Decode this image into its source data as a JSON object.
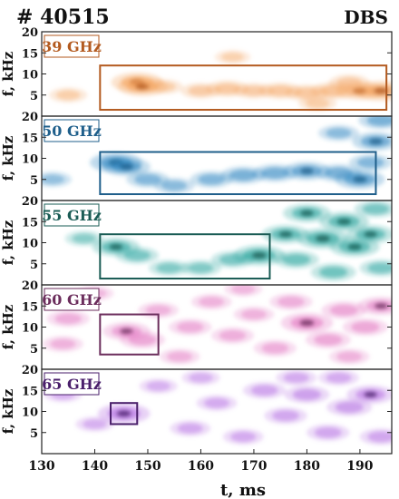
{
  "header": {
    "shot_label": "# 40515",
    "diagnostic_label": "DBS"
  },
  "chart_data": {
    "type": "heatmap",
    "title": "",
    "xlabel": "t, ms",
    "ylabel": "f, kHz",
    "xlim": [
      130,
      196
    ],
    "ylim": [
      0,
      20
    ],
    "xticks": [
      130,
      140,
      150,
      160,
      170,
      180,
      190
    ],
    "yticks": [
      5,
      10,
      15,
      20
    ],
    "panels": [
      {
        "label": "39 GHz",
        "color": "#b35a1f",
        "heat_color": "#f4a460",
        "box": {
          "t": [
            141,
            195
          ],
          "f": [
            1.5,
            12
          ]
        },
        "blobs": [
          {
            "t": 148,
            "f": 8,
            "s": 1.0
          },
          {
            "t": 149,
            "f": 7,
            "s": 0.9
          },
          {
            "t": 160,
            "f": 6,
            "s": 0.5
          },
          {
            "t": 165,
            "f": 6.5,
            "s": 0.6
          },
          {
            "t": 170,
            "f": 6,
            "s": 0.5
          },
          {
            "t": 175,
            "f": 6,
            "s": 0.6
          },
          {
            "t": 180,
            "f": 5.5,
            "s": 0.6
          },
          {
            "t": 185,
            "f": 6,
            "s": 0.7
          },
          {
            "t": 190,
            "f": 6,
            "s": 0.8
          },
          {
            "t": 194,
            "f": 6,
            "s": 1.0
          },
          {
            "t": 135,
            "f": 5,
            "s": 0.4
          },
          {
            "t": 153,
            "f": 7,
            "s": 0.4
          },
          {
            "t": 166,
            "f": 14,
            "s": 0.3
          },
          {
            "t": 182,
            "f": 3,
            "s": 0.4
          },
          {
            "t": 188,
            "f": 8,
            "s": 0.5
          }
        ]
      },
      {
        "label": "50 GHz",
        "color": "#1f5f8b",
        "heat_color": "#2e86c1",
        "box": {
          "t": [
            141,
            193
          ],
          "f": [
            1.5,
            11.5
          ]
        },
        "blobs": [
          {
            "t": 144,
            "f": 9,
            "s": 1.0
          },
          {
            "t": 146,
            "f": 8,
            "s": 0.8
          },
          {
            "t": 150,
            "f": 5,
            "s": 0.6
          },
          {
            "t": 155,
            "f": 3.5,
            "s": 0.5
          },
          {
            "t": 162,
            "f": 5,
            "s": 0.6
          },
          {
            "t": 168,
            "f": 6,
            "s": 0.7
          },
          {
            "t": 174,
            "f": 6.5,
            "s": 0.7
          },
          {
            "t": 180,
            "f": 7,
            "s": 0.8
          },
          {
            "t": 186,
            "f": 6.5,
            "s": 0.7
          },
          {
            "t": 190,
            "f": 5,
            "s": 0.9
          },
          {
            "t": 193,
            "f": 14,
            "s": 0.8
          },
          {
            "t": 194,
            "f": 19,
            "s": 0.7
          },
          {
            "t": 192,
            "f": 9,
            "s": 0.6
          },
          {
            "t": 132,
            "f": 5,
            "s": 0.4
          },
          {
            "t": 186,
            "f": 16,
            "s": 0.5
          }
        ]
      },
      {
        "label": "55 GHz",
        "color": "#1a5c55",
        "heat_color": "#21a19a",
        "box": {
          "t": [
            141,
            173
          ],
          "f": [
            1.5,
            12
          ]
        },
        "blobs": [
          {
            "t": 144,
            "f": 9,
            "s": 0.8
          },
          {
            "t": 148,
            "f": 7,
            "s": 0.6
          },
          {
            "t": 154,
            "f": 4,
            "s": 0.5
          },
          {
            "t": 160,
            "f": 4,
            "s": 0.5
          },
          {
            "t": 166,
            "f": 6,
            "s": 0.6
          },
          {
            "t": 171,
            "f": 7,
            "s": 1.0
          },
          {
            "t": 176,
            "f": 12,
            "s": 0.8
          },
          {
            "t": 180,
            "f": 17,
            "s": 0.8
          },
          {
            "t": 183,
            "f": 11,
            "s": 1.0
          },
          {
            "t": 187,
            "f": 15,
            "s": 0.9
          },
          {
            "t": 189,
            "f": 9,
            "s": 0.9
          },
          {
            "t": 192,
            "f": 12,
            "s": 0.8
          },
          {
            "t": 178,
            "f": 6,
            "s": 0.7
          },
          {
            "t": 185,
            "f": 3,
            "s": 0.7
          },
          {
            "t": 194,
            "f": 4,
            "s": 0.6
          },
          {
            "t": 138,
            "f": 11,
            "s": 0.4
          },
          {
            "t": 193,
            "f": 18,
            "s": 0.6
          }
        ]
      },
      {
        "label": "60 GHz",
        "color": "#6b2d5c",
        "heat_color": "#e377c2",
        "box": {
          "t": [
            141,
            152
          ],
          "f": [
            3.5,
            13
          ]
        },
        "blobs": [
          {
            "t": 135,
            "f": 12,
            "s": 0.6
          },
          {
            "t": 134,
            "f": 6,
            "s": 0.5
          },
          {
            "t": 146,
            "f": 9,
            "s": 0.8
          },
          {
            "t": 149,
            "f": 7,
            "s": 0.7
          },
          {
            "t": 152,
            "f": 14,
            "s": 0.5
          },
          {
            "t": 158,
            "f": 10,
            "s": 0.6
          },
          {
            "t": 162,
            "f": 16,
            "s": 0.5
          },
          {
            "t": 166,
            "f": 8,
            "s": 0.6
          },
          {
            "t": 170,
            "f": 13,
            "s": 0.5
          },
          {
            "t": 174,
            "f": 5,
            "s": 0.6
          },
          {
            "t": 177,
            "f": 16,
            "s": 0.6
          },
          {
            "t": 180,
            "f": 11,
            "s": 1.0
          },
          {
            "t": 184,
            "f": 7,
            "s": 0.7
          },
          {
            "t": 187,
            "f": 14,
            "s": 0.7
          },
          {
            "t": 191,
            "f": 10,
            "s": 0.7
          },
          {
            "t": 194,
            "f": 15,
            "s": 0.8
          },
          {
            "t": 156,
            "f": 3,
            "s": 0.5
          },
          {
            "t": 168,
            "f": 19,
            "s": 0.4
          },
          {
            "t": 188,
            "f": 3,
            "s": 0.5
          },
          {
            "t": 140,
            "f": 18,
            "s": 0.4
          }
        ]
      },
      {
        "label": "65 GHz",
        "color": "#4a1f6b",
        "heat_color": "#b36ae2",
        "box": {
          "t": [
            143,
            148
          ],
          "f": [
            7,
            12
          ]
        },
        "blobs": [
          {
            "t": 145.5,
            "f": 9.5,
            "s": 1.0
          },
          {
            "t": 134,
            "f": 14,
            "s": 0.4
          },
          {
            "t": 140,
            "f": 7,
            "s": 0.4
          },
          {
            "t": 152,
            "f": 16,
            "s": 0.4
          },
          {
            "t": 158,
            "f": 6,
            "s": 0.5
          },
          {
            "t": 163,
            "f": 12,
            "s": 0.5
          },
          {
            "t": 168,
            "f": 4,
            "s": 0.5
          },
          {
            "t": 172,
            "f": 15,
            "s": 0.6
          },
          {
            "t": 176,
            "f": 9,
            "s": 0.6
          },
          {
            "t": 180,
            "f": 14,
            "s": 0.7
          },
          {
            "t": 184,
            "f": 5,
            "s": 0.6
          },
          {
            "t": 188,
            "f": 11,
            "s": 0.7
          },
          {
            "t": 192,
            "f": 14,
            "s": 0.8
          },
          {
            "t": 194,
            "f": 4,
            "s": 0.6
          },
          {
            "t": 178,
            "f": 18,
            "s": 0.5
          },
          {
            "t": 186,
            "f": 18,
            "s": 0.5
          },
          {
            "t": 160,
            "f": 18,
            "s": 0.4
          }
        ]
      }
    ]
  }
}
